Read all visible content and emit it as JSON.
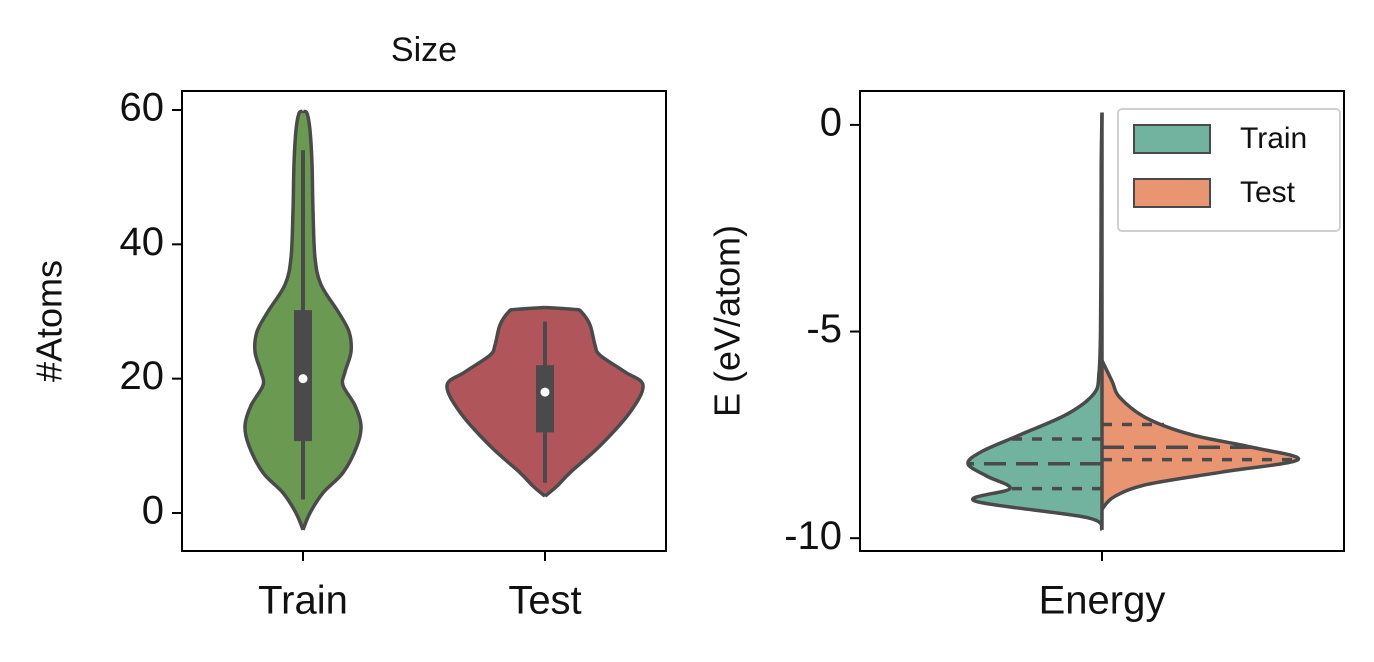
{
  "chart_data": [
    {
      "type": "violin",
      "title": "Size",
      "ylabel": "#Atoms",
      "categories": [
        "Train",
        "Test"
      ],
      "ylim": [
        -5.66,
        62.83
      ],
      "yticks": [
        0,
        20,
        40,
        60
      ],
      "violins": [
        {
          "color": "#6a9a52",
          "y": [
            -2.5,
            0,
            3,
            6,
            10,
            13,
            16,
            19,
            21,
            24,
            27,
            30,
            34,
            38,
            45,
            52,
            57,
            59.5,
            59.8
          ],
          "density": [
            0,
            0.07,
            0.2,
            0.4,
            0.54,
            0.58,
            0.52,
            0.4,
            0.42,
            0.48,
            0.46,
            0.35,
            0.18,
            0.12,
            0.1,
            0.09,
            0.07,
            0.04,
            0
          ],
          "box": {
            "whisker_low": 2,
            "q1": 10.7,
            "median": 20,
            "q3": 30.2,
            "whisker_high": 54
          }
        },
        {
          "color": "#b0555a",
          "y": [
            2.5,
            4,
            6,
            10,
            15,
            19,
            21,
            23.5,
            25,
            28,
            30,
            30.3,
            30.6
          ],
          "density": [
            0,
            0.12,
            0.25,
            0.55,
            0.85,
            0.98,
            0.8,
            0.55,
            0.5,
            0.45,
            0.36,
            0.3,
            0
          ],
          "box": {
            "whisker_low": 4.5,
            "q1": 12,
            "median": 18,
            "q3": 22,
            "whisker_high": 28.5
          }
        }
      ]
    },
    {
      "type": "split_violin",
      "ylabel": "E (eV/atom)",
      "categories": [
        "Energy"
      ],
      "ylim": [
        -10.31,
        0.82
      ],
      "yticks": [
        0,
        -5,
        -10
      ],
      "legend": "upper right",
      "series": [
        {
          "name": "Train",
          "color": "#71b39f",
          "y": [
            -9.8,
            -9.5,
            -9.1,
            -8.8,
            -8.5,
            -8.2,
            -7.9,
            -7.5,
            -7.0,
            -6.5,
            -6,
            -5,
            -3,
            -1,
            0.3
          ],
          "density": [
            0,
            0.15,
            1.27,
            0.92,
            1.15,
            1.34,
            1.2,
            0.82,
            0.35,
            0.08,
            0.03,
            0.015,
            0.01,
            0.008,
            0
          ],
          "quartiles": [
            -8.8,
            -8.2,
            -7.6
          ]
        },
        {
          "name": "Test",
          "color": "#e99572",
          "y": [
            -9.3,
            -9.0,
            -8.7,
            -8.4,
            -8.1,
            -7.8,
            -7.5,
            -7.1,
            -6.6,
            -6.2,
            -5.7
          ],
          "density": [
            0,
            0.12,
            0.45,
            1.2,
            1.96,
            1.5,
            0.9,
            0.45,
            0.18,
            0.1,
            0
          ],
          "quartiles": [
            -8.1,
            -7.8,
            -7.25
          ]
        }
      ]
    }
  ]
}
